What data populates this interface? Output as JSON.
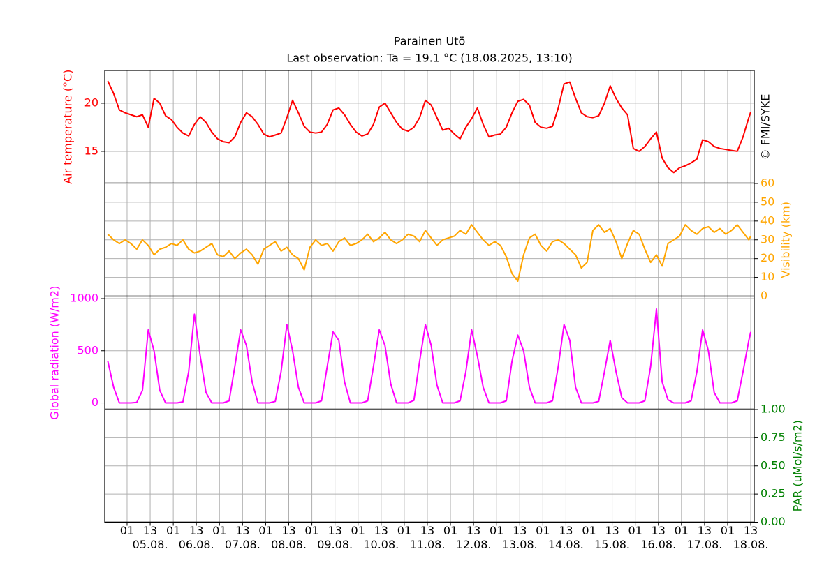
{
  "chart_data": {
    "type": "line",
    "title": "Parainen Utö",
    "subtitle": "Last observation: Ta = 19.1 °C (18.08.2025, 13:10)",
    "credit": "© FMI/SYKE",
    "grid": true,
    "x": [
      -9,
      -6,
      -3,
      0,
      3,
      6,
      9,
      12,
      15,
      18,
      21,
      24,
      27,
      30,
      33,
      36,
      39,
      42,
      45,
      48,
      51,
      54,
      57,
      60,
      63,
      66,
      69,
      72,
      75,
      78,
      81,
      84,
      87,
      90,
      93,
      96,
      99,
      102,
      105,
      108,
      111,
      114,
      117,
      120,
      123,
      126,
      129,
      132,
      135,
      138,
      141,
      144,
      147,
      150,
      153,
      156,
      159,
      162,
      165,
      168,
      171,
      174,
      177,
      180,
      183,
      186,
      189,
      192,
      195,
      198,
      201,
      204,
      207,
      210,
      213,
      216,
      219,
      222,
      225,
      228,
      231,
      234,
      237,
      240,
      243,
      246,
      249,
      252,
      255,
      258,
      261,
      264,
      267,
      270,
      273,
      276,
      279,
      282,
      285,
      288,
      291,
      294,
      297,
      300,
      303,
      306,
      309,
      312,
      315,
      318,
      321,
      324,
      325
    ],
    "xlim": [
      -10.6,
      326.8
    ],
    "xticks": [
      {
        "value": 1,
        "label": "01"
      },
      {
        "value": 13,
        "label": "13"
      },
      {
        "value": 25,
        "label": "01"
      },
      {
        "value": 37,
        "label": "13"
      },
      {
        "value": 49,
        "label": "01"
      },
      {
        "value": 61,
        "label": "13"
      },
      {
        "value": 73,
        "label": "01"
      },
      {
        "value": 85,
        "label": "13"
      },
      {
        "value": 97,
        "label": "01"
      },
      {
        "value": 109,
        "label": "13"
      },
      {
        "value": 121,
        "label": "01"
      },
      {
        "value": 133,
        "label": "13"
      },
      {
        "value": 145,
        "label": "01"
      },
      {
        "value": 157,
        "label": "13"
      },
      {
        "value": 169,
        "label": "01"
      },
      {
        "value": 181,
        "label": "13"
      },
      {
        "value": 193,
        "label": "01"
      },
      {
        "value": 205,
        "label": "13"
      },
      {
        "value": 217,
        "label": "01"
      },
      {
        "value": 229,
        "label": "13"
      },
      {
        "value": 241,
        "label": "01"
      },
      {
        "value": 253,
        "label": "13"
      },
      {
        "value": 265,
        "label": "01"
      },
      {
        "value": 277,
        "label": "13"
      },
      {
        "value": 289,
        "label": "01"
      },
      {
        "value": 301,
        "label": "13"
      },
      {
        "value": 313,
        "label": "01"
      },
      {
        "value": 325,
        "label": "13"
      }
    ],
    "date_labels": [
      {
        "value": 13,
        "label": "05.08."
      },
      {
        "value": 37,
        "label": "06.08."
      },
      {
        "value": 61,
        "label": "07.08."
      },
      {
        "value": 85,
        "label": "08.08."
      },
      {
        "value": 109,
        "label": "09.08."
      },
      {
        "value": 133,
        "label": "10.08."
      },
      {
        "value": 157,
        "label": "11.08."
      },
      {
        "value": 181,
        "label": "12.08."
      },
      {
        "value": 205,
        "label": "13.08."
      },
      {
        "value": 229,
        "label": "14.08."
      },
      {
        "value": 253,
        "label": "15.08."
      },
      {
        "value": 277,
        "label": "16.08."
      },
      {
        "value": 301,
        "label": "17.08."
      },
      {
        "value": 325,
        "label": "18.08."
      }
    ],
    "panels": [
      {
        "ylabel": "Air temperature (°C)",
        "side": "left",
        "color": "#ff0000",
        "ylim": [
          11.7,
          23.4
        ],
        "yticks": [
          15,
          20
        ],
        "values": [
          22.3,
          21.0,
          19.3,
          19.0,
          18.8,
          18.6,
          18.8,
          17.5,
          20.5,
          20.0,
          18.7,
          18.3,
          17.5,
          16.9,
          16.6,
          17.8,
          18.6,
          18.0,
          17.0,
          16.3,
          16.0,
          15.9,
          16.5,
          18.0,
          19.0,
          18.6,
          17.8,
          16.8,
          16.5,
          16.7,
          16.9,
          18.5,
          20.3,
          19.0,
          17.6,
          17.0,
          16.9,
          17.0,
          17.8,
          19.3,
          19.5,
          18.8,
          17.8,
          17.0,
          16.6,
          16.8,
          17.8,
          19.6,
          20.0,
          19.0,
          18.0,
          17.3,
          17.1,
          17.5,
          18.5,
          20.3,
          19.8,
          18.5,
          17.2,
          17.4,
          16.8,
          16.3,
          17.5,
          18.4,
          19.5,
          17.8,
          16.5,
          16.7,
          16.8,
          17.5,
          19.0,
          20.2,
          20.4,
          19.8,
          18.0,
          17.5,
          17.4,
          17.6,
          19.5,
          22.0,
          22.2,
          20.5,
          19.0,
          18.6,
          18.5,
          18.7,
          20.0,
          21.8,
          20.5,
          19.5,
          18.8,
          15.3,
          15.0,
          15.5,
          16.3,
          17.0,
          14.3,
          13.3,
          12.8,
          13.3,
          13.5,
          13.8,
          14.2,
          16.2,
          16.0,
          15.5,
          15.3,
          15.2,
          15.1,
          15.0,
          16.5,
          18.5,
          19.1
        ]
      },
      {
        "ylabel": "Visibility (km)",
        "side": "right",
        "color": "#ffa500",
        "ylim": [
          0,
          60
        ],
        "yticks": [
          0,
          10,
          20,
          30,
          40,
          50,
          60
        ],
        "values": [
          33,
          30,
          28,
          30,
          28,
          25,
          30,
          27,
          22,
          25,
          26,
          28,
          27,
          30,
          25,
          23,
          24,
          26,
          28,
          22,
          21,
          24,
          20,
          23,
          25,
          22,
          17,
          25,
          27,
          29,
          24,
          26,
          22,
          20,
          14,
          26,
          30,
          27,
          28,
          24,
          29,
          31,
          27,
          28,
          30,
          33,
          29,
          31,
          34,
          30,
          28,
          30,
          33,
          32,
          29,
          35,
          31,
          27,
          30,
          31,
          32,
          35,
          33,
          38,
          34,
          30,
          27,
          29,
          27,
          21,
          12,
          8,
          22,
          31,
          33,
          27,
          24,
          29,
          30,
          28,
          25,
          22,
          15,
          18,
          35,
          38,
          34,
          36,
          29,
          20,
          28,
          35,
          33,
          25,
          18,
          22,
          16,
          28,
          30,
          32,
          38,
          35,
          33,
          36,
          37,
          34,
          36,
          33,
          35,
          38,
          34,
          30,
          32
        ]
      },
      {
        "ylabel": "Global radiation (W/m2)",
        "side": "left",
        "color": "#ff00ff",
        "ylim": [
          -60,
          1020
        ],
        "yticks": [
          0,
          500,
          1000
        ],
        "values": [
          400,
          150,
          0,
          0,
          0,
          5,
          120,
          700,
          500,
          120,
          0,
          0,
          0,
          10,
          300,
          850,
          450,
          100,
          0,
          0,
          0,
          20,
          350,
          700,
          550,
          200,
          0,
          0,
          0,
          15,
          300,
          750,
          500,
          150,
          0,
          0,
          0,
          20,
          350,
          680,
          600,
          200,
          0,
          0,
          0,
          20,
          350,
          700,
          550,
          180,
          0,
          0,
          0,
          25,
          400,
          750,
          550,
          170,
          0,
          0,
          0,
          20,
          300,
          700,
          450,
          150,
          0,
          0,
          0,
          20,
          400,
          650,
          500,
          150,
          0,
          0,
          0,
          20,
          350,
          750,
          600,
          150,
          0,
          0,
          0,
          15,
          300,
          600,
          300,
          50,
          0,
          0,
          0,
          20,
          350,
          900,
          200,
          30,
          0,
          0,
          0,
          20,
          300,
          700,
          500,
          100,
          0,
          0,
          0,
          20,
          300,
          600,
          680
        ]
      },
      {
        "ylabel": "PAR (uMol/s/m2)",
        "side": "right",
        "color": "#008000",
        "ylim": [
          0,
          1
        ],
        "yticks": [
          {
            "value": 0,
            "label": "0.00"
          },
          {
            "value": 0.25,
            "label": "0.25"
          },
          {
            "value": 0.5,
            "label": "0.50"
          },
          {
            "value": 0.75,
            "label": "0.75"
          },
          {
            "value": 1,
            "label": "1.00"
          }
        ]
      }
    ]
  }
}
